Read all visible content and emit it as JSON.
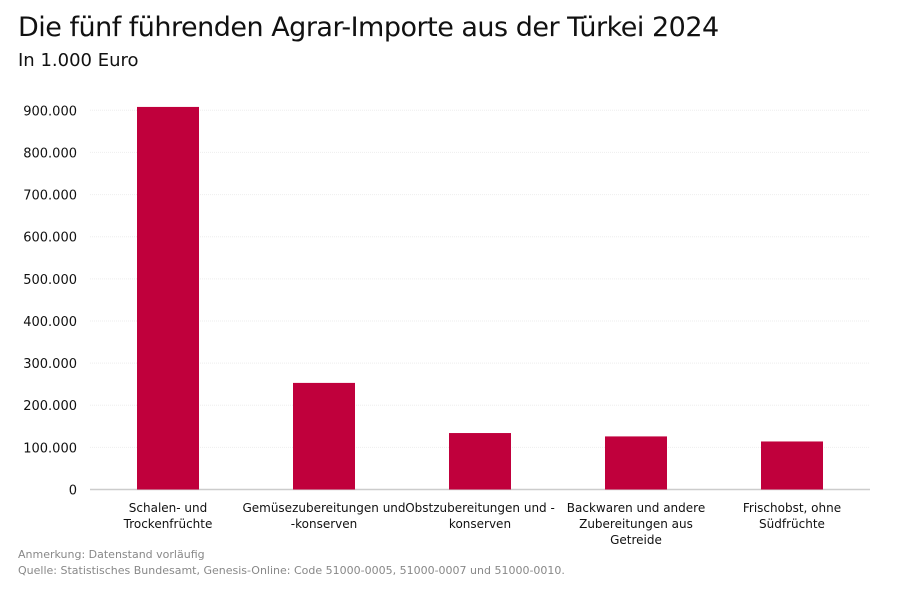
{
  "chart_data": {
    "type": "bar",
    "title": "Die fünf führenden Agrar-Importe aus der Türkei 2024",
    "subtitle": "In 1.000 Euro",
    "categories": [
      [
        "Schalen- und",
        "Trockenfrüchte"
      ],
      [
        "Gemüsezubereitungen und",
        "-konserven"
      ],
      [
        "Obstzubereitungen und -",
        "konserven"
      ],
      [
        "Backwaren und andere",
        "Zubereitungen aus",
        "Getreide"
      ],
      [
        "Frischobst, ohne",
        "Südfrüchte"
      ]
    ],
    "values": [
      908000,
      253000,
      134000,
      126000,
      114000
    ],
    "ylim": [
      0,
      900000
    ],
    "yticks": [
      "0",
      "100.000",
      "200.000",
      "300.000",
      "400.000",
      "500.000",
      "600.000",
      "700.000",
      "800.000",
      "900.000"
    ],
    "grid": true,
    "color": "#c0003c"
  },
  "notes": {
    "remark": "Anmerkung: Datenstand vorläufig",
    "source": "Quelle: Statistisches Bundesamt, Genesis-Online: Code 51000-0005, 51000-0007 und 51000-0010."
  }
}
